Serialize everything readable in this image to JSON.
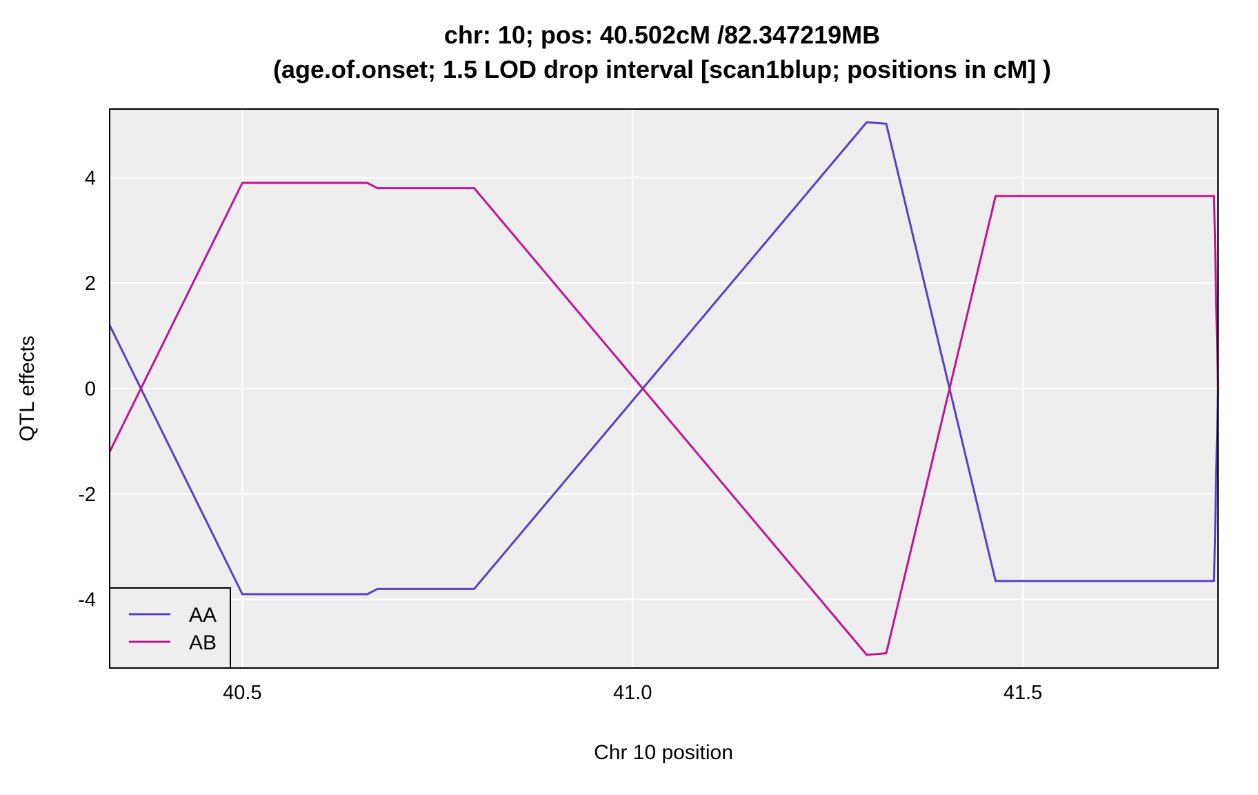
{
  "chart_data": {
    "type": "line",
    "title": "chr: 10; pos: 40.502cM /82.347219MB",
    "subtitle": "(age.of.onset; 1.5 LOD drop interval [scan1blup; positions in cM] )",
    "xlabel": "Chr 10 position",
    "ylabel": "QTL effects",
    "xlim": [
      40.33,
      41.75
    ],
    "ylim": [
      -5.3,
      5.3
    ],
    "x_ticks": [
      40.5,
      41.0,
      41.5
    ],
    "x_tick_labels": [
      "40.5",
      "41.0",
      "41.5"
    ],
    "y_ticks": [
      -4,
      -2,
      0,
      2,
      4
    ],
    "y_tick_labels": [
      "-4",
      "-2",
      "0",
      "2",
      "4"
    ],
    "grid": true,
    "background": "#eeeeee",
    "legend_position": "bottom-left",
    "series": [
      {
        "name": "AA",
        "color": "#5a3fc4",
        "x": [
          40.33,
          40.5,
          40.66,
          40.673,
          40.797,
          41.3,
          41.325,
          41.465,
          41.745,
          41.75
        ],
        "y": [
          1.2,
          -3.9,
          -3.9,
          -3.8,
          -3.8,
          5.05,
          5.02,
          -3.65,
          -3.65,
          0.0
        ]
      },
      {
        "name": "AB",
        "color": "#c0168c",
        "x": [
          40.33,
          40.5,
          40.66,
          40.673,
          40.797,
          41.3,
          41.325,
          41.465,
          41.745,
          41.75
        ],
        "y": [
          -1.2,
          3.9,
          3.9,
          3.8,
          3.8,
          -5.05,
          -5.02,
          3.65,
          3.65,
          0.0
        ]
      }
    ]
  }
}
